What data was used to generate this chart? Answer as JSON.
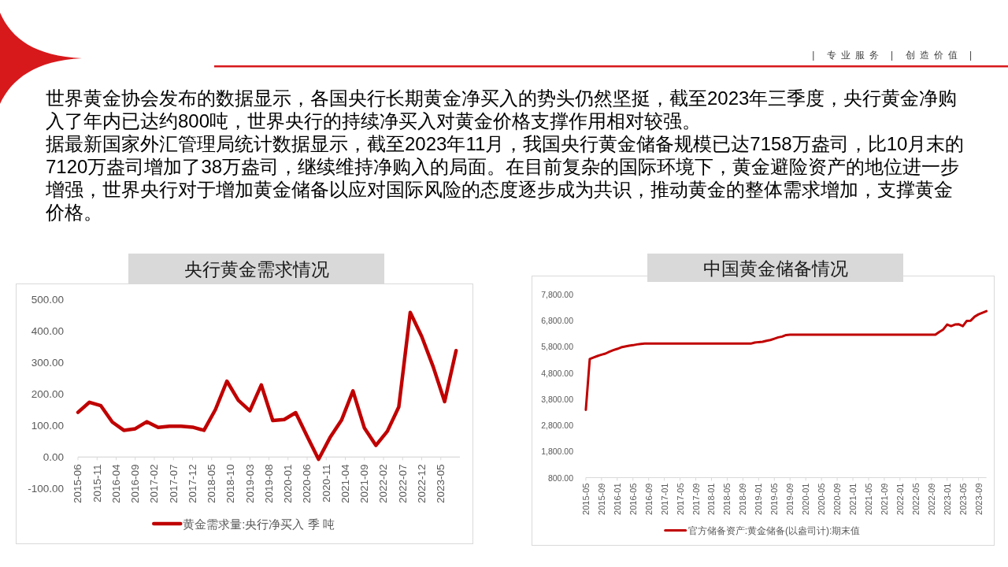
{
  "chart_data": [
    {
      "type": "other",
      "annotations": [
        "| 专业服务 | 创造价值 |",
        "世界黄金协会发布的数据显示，各国央行长期黄金净买入的势头仍然坚挺，截至2023年三季度，央行黄金净购入了年内已达约800吨，世界央行的持续净买入对黄金价格支撑作用相对较强。",
        "据最新国家外汇管理局统计数据显示，截至2023年11月，我国央行黄金储备规模已达7158万盎司，比10月末的7120万盎司增加了38万盎司，继续维持净购入的局面。在目前复杂的国际环境下，黄金避险资产的地位进一步增强，世界央行对于增加黄金储备以应对国际风险的态度逐步成为共识，推动黄金的整体需求增加，支撑黄金价格。"
      ]
    },
    {
      "type": "line",
      "title": "央行黄金需求情况",
      "x": [
        "2015-06",
        "2015-09",
        "2015-12",
        "2016-03",
        "2016-06",
        "2016-09",
        "2016-12",
        "2017-03",
        "2017-06",
        "2017-09",
        "2017-12",
        "2018-03",
        "2018-06",
        "2018-09",
        "2018-12",
        "2019-03",
        "2019-06",
        "2019-09",
        "2019-12",
        "2020-03",
        "2020-06",
        "2020-09",
        "2020-12",
        "2021-03",
        "2021-06",
        "2021-09",
        "2021-12",
        "2022-03",
        "2022-06",
        "2022-09",
        "2022-12",
        "2023-03",
        "2023-06",
        "2023-09"
      ],
      "series": [
        {
          "name": "黄金需求量:央行净买入 季 吨",
          "color": "#c00000",
          "values": [
            142,
            174,
            163,
            111,
            85,
            90,
            112,
            94,
            98,
            98,
            95,
            85,
            151,
            241,
            180,
            147,
            229,
            116,
            119,
            141,
            66,
            -7,
            62,
            117,
            210,
            92,
            37,
            82,
            159,
            459,
            383,
            287,
            176,
            338
          ]
        }
      ],
      "xlim": [
        "2015-06",
        "2023-10"
      ],
      "xticks": [
        "2015-06",
        "2015-11",
        "2016-04",
        "2016-09",
        "2017-02",
        "2017-07",
        "2017-12",
        "2018-05",
        "2018-10",
        "2019-03",
        "2019-08",
        "2020-01",
        "2020-06",
        "2020-11",
        "2021-04",
        "2021-09",
        "2022-02",
        "2022-07",
        "2022-12",
        "2023-05"
      ],
      "ylim": [
        -100,
        500
      ],
      "yticks": [
        {
          "value": -100,
          "label": "-100.00"
        },
        {
          "value": 0,
          "label": "0.00"
        },
        {
          "value": 100,
          "label": "100.00"
        },
        {
          "value": 200,
          "label": "200.00"
        },
        {
          "value": 300,
          "label": "300.00"
        },
        {
          "value": 400,
          "label": "400.00"
        },
        {
          "value": 500,
          "label": "500.00"
        }
      ],
      "legend": "bottom"
    },
    {
      "type": "line",
      "title": "中国黄金储备情况",
      "x": [
        "2015-05",
        "2015-06",
        "2015-07",
        "2015-08",
        "2015-09",
        "2015-10",
        "2015-11",
        "2015-12",
        "2016-01",
        "2016-02",
        "2016-03",
        "2016-04",
        "2016-05",
        "2016-06",
        "2016-07",
        "2016-08",
        "2016-09",
        "2016-10",
        "2016-11",
        "2016-12",
        "2017-01",
        "2017-02",
        "2017-03",
        "2017-04",
        "2017-05",
        "2017-06",
        "2017-07",
        "2017-08",
        "2017-09",
        "2017-10",
        "2017-11",
        "2017-12",
        "2018-01",
        "2018-02",
        "2018-03",
        "2018-04",
        "2018-05",
        "2018-06",
        "2018-07",
        "2018-08",
        "2018-09",
        "2018-10",
        "2018-11",
        "2018-12",
        "2019-01",
        "2019-02",
        "2019-03",
        "2019-04",
        "2019-05",
        "2019-06",
        "2019-07",
        "2019-08",
        "2019-09",
        "2019-10",
        "2019-11",
        "2019-12",
        "2020-01",
        "2020-02",
        "2020-03",
        "2020-04",
        "2020-05",
        "2020-06",
        "2020-07",
        "2020-08",
        "2020-09",
        "2020-10",
        "2020-11",
        "2020-12",
        "2021-01",
        "2021-02",
        "2021-03",
        "2021-04",
        "2021-05",
        "2021-06",
        "2021-07",
        "2021-08",
        "2021-09",
        "2021-10",
        "2021-11",
        "2021-12",
        "2022-01",
        "2022-02",
        "2022-03",
        "2022-04",
        "2022-05",
        "2022-06",
        "2022-07",
        "2022-08",
        "2022-09",
        "2022-10",
        "2022-11",
        "2022-12",
        "2023-01",
        "2023-02",
        "2023-03",
        "2023-04",
        "2023-05",
        "2023-06",
        "2023-07",
        "2023-08",
        "2023-09",
        "2023-10",
        "2023-11"
      ],
      "series": [
        {
          "name": "官方储备资产:黄金储备(以盎司计):期末值",
          "color": "#c00000",
          "values": [
            3390,
            5330,
            5390,
            5450,
            5500,
            5540,
            5610,
            5670,
            5720,
            5780,
            5810,
            5840,
            5860,
            5890,
            5910,
            5920,
            5920,
            5920,
            5920,
            5920,
            5920,
            5920,
            5920,
            5920,
            5920,
            5920,
            5920,
            5920,
            5920,
            5920,
            5920,
            5920,
            5920,
            5920,
            5920,
            5920,
            5920,
            5920,
            5920,
            5920,
            5920,
            5920,
            5920,
            5960,
            5980,
            5990,
            6030,
            6060,
            6110,
            6160,
            6190,
            6250,
            6260,
            6260,
            6260,
            6260,
            6260,
            6260,
            6260,
            6260,
            6260,
            6260,
            6260,
            6260,
            6260,
            6260,
            6260,
            6260,
            6260,
            6260,
            6260,
            6260,
            6260,
            6260,
            6260,
            6260,
            6260,
            6260,
            6260,
            6260,
            6260,
            6260,
            6260,
            6260,
            6260,
            6260,
            6260,
            6260,
            6260,
            6260,
            6370,
            6460,
            6650,
            6590,
            6650,
            6660,
            6590,
            6790,
            6800,
            6950,
            7040,
            7100,
            7160
          ]
        }
      ],
      "xlim": [
        "2015-05",
        "2023-11"
      ],
      "xticks": [
        "2015-05",
        "2015-09",
        "2016-01",
        "2016-05",
        "2016-09",
        "2017-01",
        "2017-05",
        "2017-09",
        "2018-01",
        "2018-05",
        "2018-09",
        "2019-01",
        "2019-05",
        "2019-09",
        "2020-01",
        "2020-05",
        "2020-09",
        "2021-01",
        "2021-05",
        "2021-09",
        "2022-01",
        "2022-05",
        "2022-09",
        "2023-01",
        "2023-05",
        "2023-09"
      ],
      "ylim": [
        800,
        7800
      ],
      "yticks": [
        {
          "value": 800,
          "label": "800.00"
        },
        {
          "value": 1800,
          "label": "1,800.00"
        },
        {
          "value": 2800,
          "label": "2,800.00"
        },
        {
          "value": 3800,
          "label": "3,800.00"
        },
        {
          "value": 4800,
          "label": "4,800.00"
        },
        {
          "value": 5800,
          "label": "5,800.00"
        },
        {
          "value": 6800,
          "label": "6,800.00"
        },
        {
          "value": 7800,
          "label": "7,800.00"
        }
      ],
      "legend": "bottom"
    }
  ]
}
